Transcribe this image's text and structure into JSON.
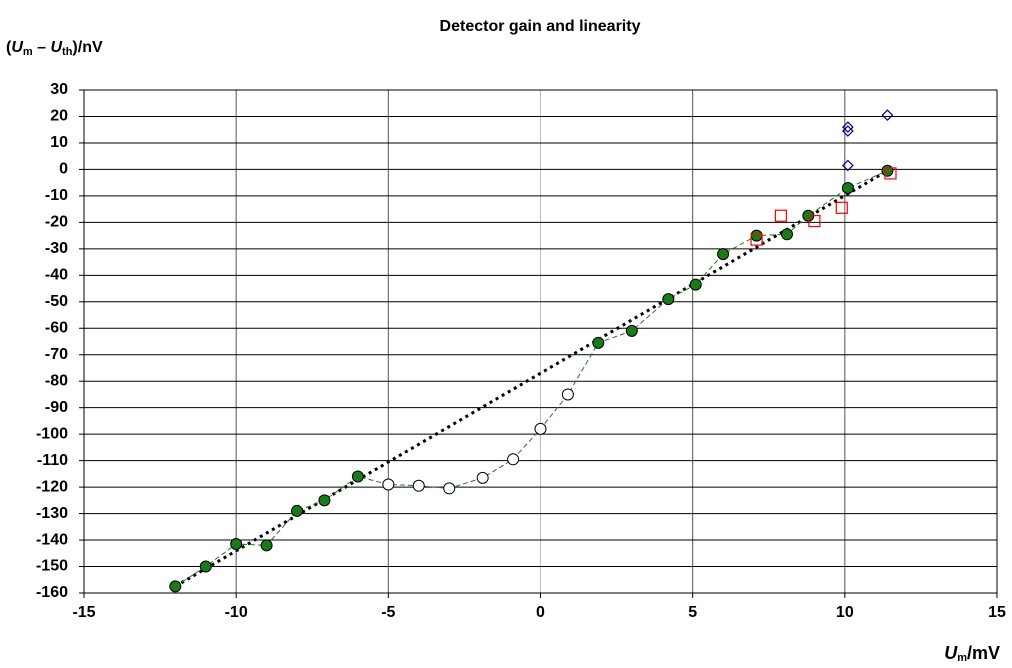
{
  "chart_data": {
    "type": "scatter",
    "title": "Detector gain and linearity",
    "ylabel": [
      "(",
      "U",
      "m",
      " – ",
      "U",
      "th",
      ")/nV"
    ],
    "xlabel": [
      "U",
      "m",
      "/mV"
    ],
    "xlim": [
      -15,
      15
    ],
    "xticks": [
      -15,
      -10,
      -5,
      0,
      5,
      10,
      15
    ],
    "ylim": [
      -160,
      30
    ],
    "yticks": [
      -160,
      -150,
      -140,
      -130,
      -120,
      -110,
      -100,
      -90,
      -80,
      -70,
      -60,
      -50,
      -40,
      -30,
      -20,
      -10,
      0,
      10,
      20,
      30
    ],
    "grid": true,
    "series": [
      {
        "style": "dotted-line",
        "color": "#000000",
        "x": [
          -12,
          11.4
        ],
        "values": [
          -157.5,
          -0.5
        ]
      },
      {
        "style": "circles-dashed-line",
        "color": "#1a7a1a",
        "marker_fill": [
          "#1a7a1a",
          "#1a7a1a",
          "#1a7a1a",
          "#1a7a1a",
          "#1a7a1a",
          "#1a7a1a",
          "#1a7a1a",
          "#ffffff",
          "#ffffff",
          "#ffffff",
          "#ffffff",
          "#ffffff",
          "#ffffff",
          "#ffffff",
          "#1a7a1a",
          "#1a7a1a",
          "#1a7a1a",
          "#1a7a1a",
          "#1a7a1a",
          "#1a7a1a",
          "#1a7a1a",
          "#1a7a1a",
          "#1a7a1a",
          "#1a7a1a"
        ],
        "x": [
          -12,
          -11,
          -10,
          -9,
          -8,
          -7.1,
          -6,
          -5,
          -4,
          -3,
          -1.9,
          -0.9,
          0,
          0.9,
          1.9,
          3,
          4.2,
          5.1,
          6,
          7.1,
          8.1,
          8.8,
          10.1,
          11.4
        ],
        "values": [
          -157.5,
          -150,
          -141.5,
          -142,
          -129,
          -125,
          -116,
          -119,
          -119.5,
          -120.5,
          -116.5,
          -109.5,
          -98,
          -85,
          -65.5,
          -61,
          -49,
          -43.5,
          -32,
          -25,
          -24.5,
          -17.5,
          -7,
          -0.5
        ]
      },
      {
        "style": "squares",
        "color": "#ff0000",
        "x": [
          7.1,
          7.9,
          9,
          9.9,
          11.5
        ],
        "values": [
          -26.5,
          -17.5,
          -19.5,
          -14.5,
          -1.5
        ]
      },
      {
        "style": "diamonds",
        "color": "#000080",
        "x": [
          10.1,
          10.1,
          10.1,
          11.4
        ],
        "values": [
          1.5,
          14.5,
          16,
          20.5
        ]
      }
    ]
  }
}
